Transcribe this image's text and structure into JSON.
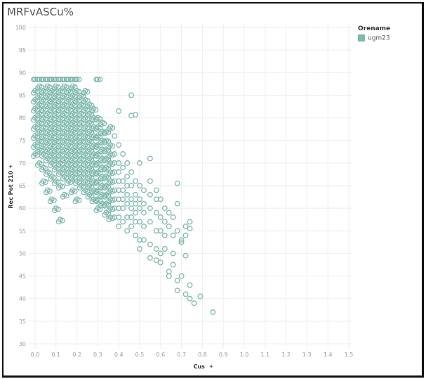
{
  "title": "MRFvASCu%",
  "legend": {
    "title": "Orename",
    "items": [
      {
        "label": "ugm23",
        "color": "#7fb8ad"
      }
    ]
  },
  "chart_data": {
    "type": "scatter",
    "title": "MRFvASCu%",
    "xlabel": "Cus",
    "ylabel": "Rec Pot 210",
    "xlim": [
      0,
      1.5
    ],
    "ylim": [
      30,
      100
    ],
    "xticks": [
      "0.0",
      "0.1",
      "0.2",
      "0.3",
      "0.4",
      "0.5",
      "0.6",
      "0.7",
      "0.8",
      "0.9",
      "1.0",
      "1.1",
      "1.2",
      "1.3",
      "1.4",
      "1.5"
    ],
    "yticks": [
      "100",
      "95",
      "90",
      "85",
      "80",
      "75",
      "70",
      "65",
      "60",
      "55",
      "50",
      "45",
      "40",
      "35",
      "30"
    ],
    "grid": true,
    "legend_position": "top-right",
    "series": [
      {
        "name": "ugm23",
        "color": "#7fb8ad",
        "columns": [
          {
            "x": 0.0,
            "y": [
              88.5,
              86,
              84,
              82,
              80,
              78,
              76,
              74,
              72
            ]
          },
          {
            "x": 0.02,
            "y": [
              88.5,
              87,
              85,
              83,
              81,
              79,
              77,
              75,
              73,
              70
            ]
          },
          {
            "x": 0.04,
            "y": [
              88.5,
              86,
              84,
              82,
              80,
              78,
              76,
              74,
              72,
              69,
              66
            ]
          },
          {
            "x": 0.06,
            "y": [
              88.5,
              87,
              85,
              83,
              81,
              79,
              77,
              75,
              73,
              71,
              68,
              64
            ]
          },
          {
            "x": 0.08,
            "y": [
              88.5,
              86,
              84,
              82,
              80,
              78,
              76,
              74,
              72,
              70,
              67,
              62
            ]
          },
          {
            "x": 0.1,
            "y": [
              88.5,
              87,
              85,
              83,
              81,
              79,
              77,
              75,
              73,
              71,
              69,
              66,
              60
            ]
          },
          {
            "x": 0.12,
            "y": [
              88.5,
              86,
              84,
              82,
              80,
              78,
              76,
              74,
              72,
              70,
              68,
              65,
              57.5
            ]
          },
          {
            "x": 0.14,
            "y": [
              88.5,
              87,
              85,
              83,
              81,
              79,
              77,
              75,
              73,
              71,
              69,
              67,
              63
            ]
          },
          {
            "x": 0.16,
            "y": [
              88.5,
              86,
              84,
              82,
              80,
              78,
              76,
              74,
              72,
              70,
              68,
              66
            ]
          },
          {
            "x": 0.18,
            "y": [
              88.5,
              87,
              85,
              83,
              81,
              79,
              77,
              75,
              73,
              71,
              69,
              67,
              64
            ]
          },
          {
            "x": 0.2,
            "y": [
              88.5,
              86,
              84,
              82,
              80,
              78,
              76,
              74,
              72,
              70,
              68,
              66,
              62
            ]
          },
          {
            "x": 0.22,
            "y": [
              85,
              83,
              81,
              79,
              77,
              75,
              73,
              71,
              69,
              67,
              65
            ]
          },
          {
            "x": 0.24,
            "y": [
              86,
              84,
              82,
              80,
              78,
              76,
              74,
              72,
              70,
              68,
              66,
              64
            ]
          },
          {
            "x": 0.26,
            "y": [
              83,
              81,
              79,
              77,
              75,
              73,
              71,
              69,
              67,
              65,
              63
            ]
          },
          {
            "x": 0.28,
            "y": [
              82,
              80,
              78,
              76,
              74,
              72,
              70,
              68,
              66,
              64,
              62
            ]
          },
          {
            "x": 0.3,
            "y": [
              88.5,
              80,
              78,
              76,
              74,
              72,
              70,
              68,
              66,
              64,
              62,
              60
            ]
          },
          {
            "x": 0.32,
            "y": [
              79,
              77,
              75,
              73,
              71,
              69,
              67,
              65,
              63,
              61
            ]
          },
          {
            "x": 0.34,
            "y": [
              77,
              75,
              73,
              71,
              69,
              67,
              65,
              63,
              61,
              59
            ]
          },
          {
            "x": 0.36,
            "y": [
              78,
              74,
              72,
              70,
              68,
              66,
              64,
              62,
              60,
              58
            ]
          },
          {
            "x": 0.38,
            "y": [
              76,
              72,
              70,
              68,
              66,
              64,
              62,
              60,
              58
            ]
          },
          {
            "x": 0.4,
            "y": [
              81.5,
              74,
              70,
              68,
              66,
              64,
              62,
              60,
              58,
              56
            ]
          },
          {
            "x": 0.42,
            "y": [
              72,
              69,
              66,
              64,
              62,
              60,
              57
            ]
          },
          {
            "x": 0.44,
            "y": [
              70,
              67,
              65,
              63,
              61,
              58,
              55
            ]
          },
          {
            "x": 0.46,
            "y": [
              85,
              80.5,
              68,
              65,
              62,
              60,
              58,
              56
            ]
          },
          {
            "x": 0.48,
            "y": [
              80.7,
              66,
              63,
              61,
              59,
              57,
              54
            ]
          },
          {
            "x": 0.5,
            "y": [
              70,
              65,
              62,
              60,
              57,
              53,
              51
            ]
          },
          {
            "x": 0.52,
            "y": [
              64,
              61,
              59,
              56,
              53
            ]
          },
          {
            "x": 0.55,
            "y": [
              71,
              66,
              63,
              60,
              57,
              52,
              49
            ]
          },
          {
            "x": 0.58,
            "y": [
              64,
              62,
              59,
              55,
              51,
              48.5
            ]
          },
          {
            "x": 0.6,
            "y": [
              62,
              58,
              55,
              50,
              48
            ]
          },
          {
            "x": 0.62,
            "y": [
              60,
              57,
              54,
              51
            ]
          },
          {
            "x": 0.64,
            "y": [
              59,
              56,
              46,
              45
            ]
          },
          {
            "x": 0.66,
            "y": [
              58,
              54,
              50,
              47.5
            ]
          },
          {
            "x": 0.68,
            "y": [
              65.5,
              61,
              55,
              44,
              41.8
            ]
          },
          {
            "x": 0.7,
            "y": [
              53,
              52.5,
              45
            ]
          },
          {
            "x": 0.72,
            "y": [
              56,
              54,
              49.5,
              41
            ]
          },
          {
            "x": 0.74,
            "y": [
              57,
              55.5,
              43,
              40
            ]
          },
          {
            "x": 0.76,
            "y": [
              39
            ]
          },
          {
            "x": 0.79,
            "y": [
              40.5
            ]
          },
          {
            "x": 0.85,
            "y": [
              37
            ]
          }
        ]
      }
    ]
  }
}
